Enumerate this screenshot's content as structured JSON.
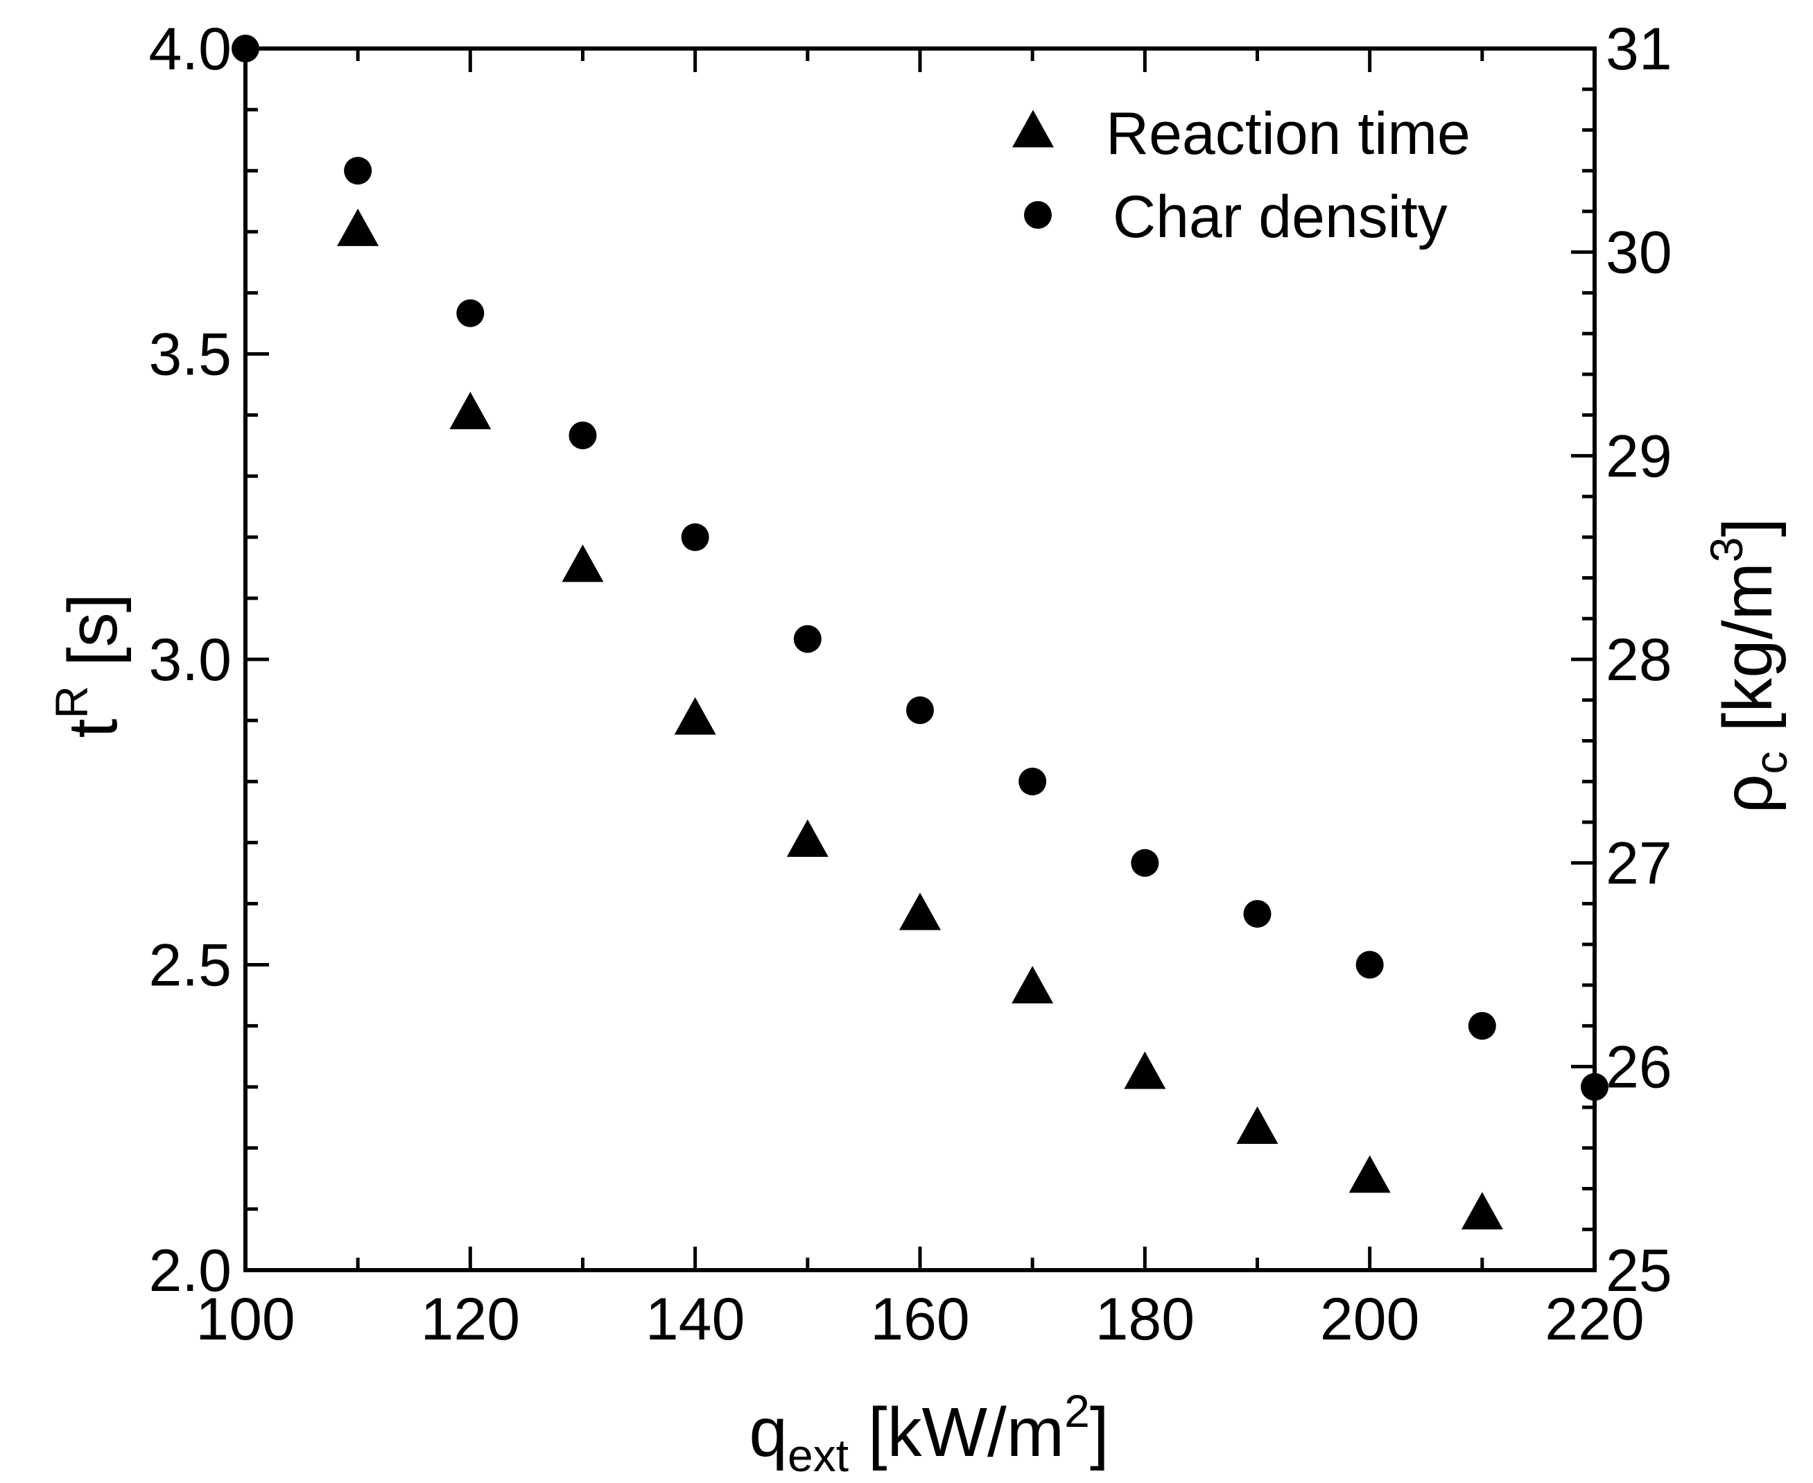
{
  "chart_data": {
    "type": "scatter",
    "title": "",
    "x": [
      100,
      110,
      120,
      130,
      140,
      150,
      160,
      170,
      180,
      190,
      200,
      210,
      220
    ],
    "xlim": [
      100,
      220
    ],
    "xticks": [
      "100",
      "120",
      "140",
      "160",
      "180",
      "200",
      "220"
    ],
    "xlabel": {
      "main": "q",
      "sub": "ext",
      "rest": " [kW/m",
      "sup": "2",
      "end": "]"
    },
    "ylabel_left": {
      "main": "t",
      "sup": "R",
      "rest": " [s]"
    },
    "ylabel_right": {
      "main": "ρ",
      "sub": "c",
      "rest": " [kg/m",
      "sup": "3",
      "end": "]"
    },
    "ylim_left": [
      2.0,
      4.0
    ],
    "ylim_right": [
      25,
      31
    ],
    "yticks_left": [
      "2.0",
      "2.5",
      "3.0",
      "3.5",
      "4.0"
    ],
    "yticks_right": [
      "25",
      "26",
      "27",
      "28",
      "29",
      "30",
      "31"
    ],
    "series": [
      {
        "name": "Reaction time",
        "marker": "triangle",
        "axis": "left",
        "color": "#000000",
        "points": [
          [
            110,
            3.7
          ],
          [
            120,
            3.4
          ],
          [
            130,
            3.15
          ],
          [
            140,
            2.9
          ],
          [
            150,
            2.7
          ],
          [
            160,
            2.58
          ],
          [
            170,
            2.46
          ],
          [
            180,
            2.32
          ],
          [
            190,
            2.23
          ],
          [
            200,
            2.15
          ],
          [
            210,
            2.09
          ]
        ]
      },
      {
        "name": "Char density",
        "marker": "circle",
        "axis": "right",
        "color": "#000000",
        "points": [
          [
            100,
            31.0
          ],
          [
            110,
            30.4
          ],
          [
            120,
            29.7
          ],
          [
            130,
            29.1
          ],
          [
            140,
            28.6
          ],
          [
            150,
            28.1
          ],
          [
            160,
            27.75
          ],
          [
            170,
            27.4
          ],
          [
            180,
            27.0
          ],
          [
            190,
            26.75
          ],
          [
            200,
            26.5
          ],
          [
            210,
            26.2
          ],
          [
            220,
            25.9
          ]
        ]
      }
    ],
    "legend": {
      "position": "top-right",
      "entries": [
        "Reaction time",
        "Char density"
      ]
    },
    "grid": false
  }
}
